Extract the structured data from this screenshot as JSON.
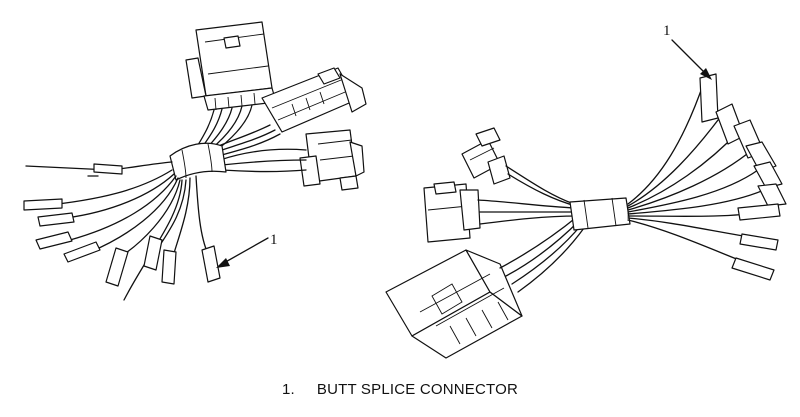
{
  "caption": {
    "number": "1.",
    "text": "BUTT SPLICE CONNECTOR"
  },
  "callouts": {
    "left": "1",
    "right": "1"
  }
}
